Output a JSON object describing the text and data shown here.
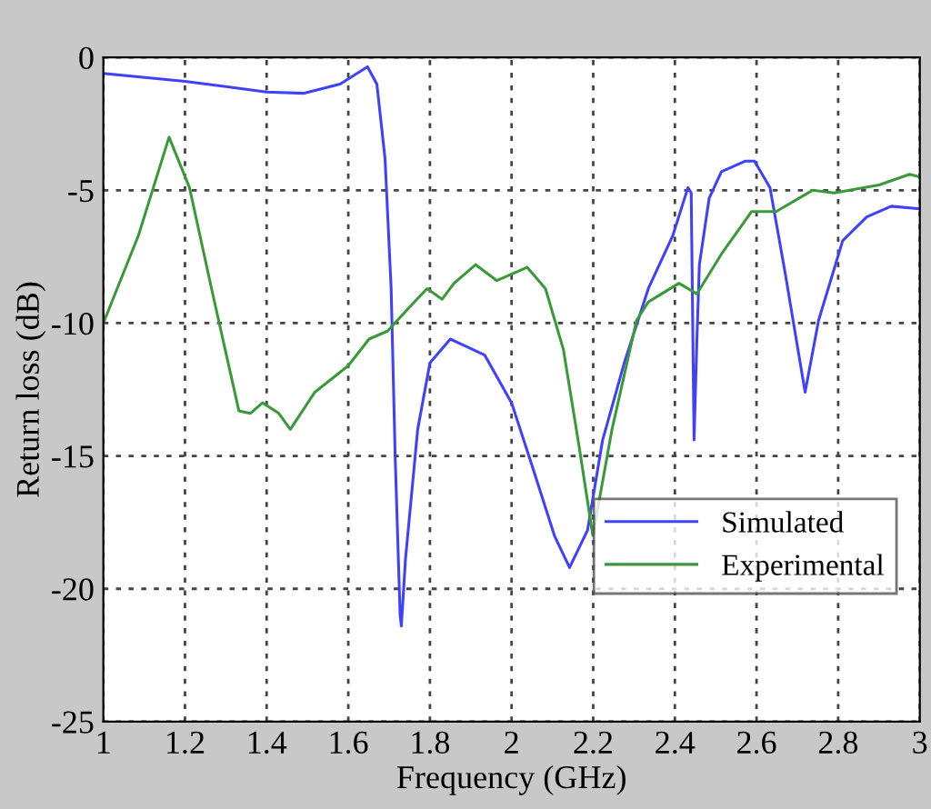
{
  "chart_data": {
    "type": "line",
    "xlabel": "Frequency (GHz)",
    "ylabel": "Return loss (dB)",
    "xlim": [
      1,
      3
    ],
    "xticks": [
      1,
      1.2,
      1.4,
      1.6,
      1.8,
      2,
      2.2,
      2.4,
      2.6,
      2.8,
      3
    ],
    "ylim": [
      -25,
      0
    ],
    "yticks": [
      0,
      -5,
      -10,
      -15,
      -20,
      -25
    ],
    "grid": true,
    "legend": "lower right",
    "line_style": "solid",
    "marker": "none",
    "series": [
      {
        "name": "Simulated",
        "color": "#4040ff",
        "x": [
          1.0,
          1.2,
          1.4,
          1.49,
          1.58,
          1.647,
          1.67,
          1.69,
          1.705,
          1.715,
          1.727,
          1.73,
          1.74,
          1.77,
          1.8,
          1.85,
          1.934,
          2.0,
          2.053,
          2.105,
          2.142,
          2.186,
          2.223,
          2.276,
          2.335,
          2.395,
          2.432,
          2.44,
          2.447,
          2.454,
          2.46,
          2.484,
          2.514,
          2.573,
          2.595,
          2.633,
          2.67,
          2.719,
          2.752,
          2.811,
          2.87,
          2.93,
          3.0
        ],
        "values": [
          -0.6,
          -0.9,
          -1.3,
          -1.35,
          -1.0,
          -0.35,
          -1.0,
          -3.8,
          -8.7,
          -15.1,
          -21.0,
          -21.4,
          -18.9,
          -14.0,
          -11.5,
          -10.6,
          -11.2,
          -13.0,
          -15.5,
          -18.0,
          -19.2,
          -17.8,
          -14.4,
          -11.5,
          -8.7,
          -6.7,
          -4.9,
          -5.1,
          -14.4,
          -10.6,
          -7.8,
          -5.3,
          -4.3,
          -3.9,
          -3.9,
          -4.9,
          -8.1,
          -12.6,
          -9.9,
          -6.9,
          -6.0,
          -5.6,
          -5.7
        ]
      },
      {
        "name": "Experimental",
        "color": "#3a9a3a",
        "x": [
          1.0,
          1.086,
          1.161,
          1.211,
          1.265,
          1.332,
          1.36,
          1.39,
          1.43,
          1.458,
          1.518,
          1.6,
          1.651,
          1.696,
          1.756,
          1.793,
          1.83,
          1.859,
          1.912,
          1.964,
          2.038,
          2.083,
          2.127,
          2.165,
          2.199,
          2.246,
          2.306,
          2.335,
          2.41,
          2.454,
          2.514,
          2.588,
          2.648,
          2.737,
          2.79,
          2.9,
          2.975,
          3.0
        ],
        "values": [
          -10.0,
          -6.7,
          -3.0,
          -4.9,
          -8.7,
          -13.3,
          -13.4,
          -13.0,
          -13.4,
          -14.0,
          -12.6,
          -11.6,
          -10.6,
          -10.3,
          -9.3,
          -8.7,
          -9.1,
          -8.5,
          -7.8,
          -8.4,
          -7.9,
          -8.7,
          -11.0,
          -14.6,
          -18.0,
          -14.0,
          -9.9,
          -9.2,
          -8.5,
          -8.9,
          -7.4,
          -5.8,
          -5.8,
          -5.0,
          -5.1,
          -4.8,
          -4.4,
          -4.5
        ]
      }
    ]
  }
}
